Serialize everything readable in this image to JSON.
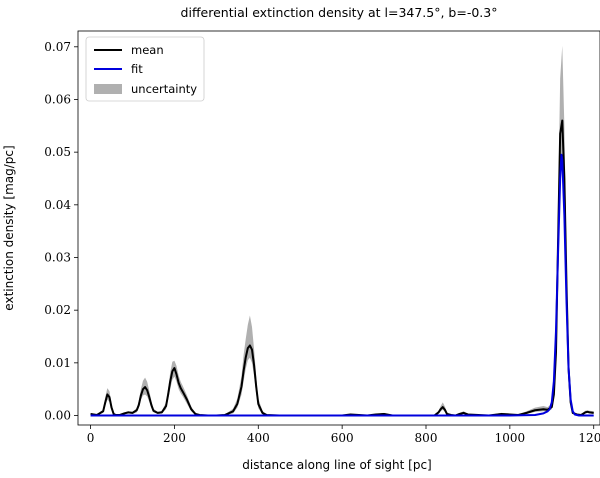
{
  "chart_data": {
    "type": "line",
    "title": "differential extinction density at l=347.5°, b=-0.3°",
    "xlabel": "distance along line of sight [pc]",
    "ylabel": "extinction density [mag/pc]",
    "xlim": [
      -30,
      1215
    ],
    "ylim": [
      -0.0018,
      0.073
    ],
    "xticks": [
      0,
      200,
      400,
      600,
      800,
      1000,
      1200
    ],
    "xtick_labels": [
      "0",
      "200",
      "400",
      "600",
      "800",
      "1000",
      "1200"
    ],
    "yticks": [
      0.0,
      0.01,
      0.02,
      0.03,
      0.04,
      0.05,
      0.06,
      0.07
    ],
    "ytick_labels": [
      "0.00",
      "0.01",
      "0.02",
      "0.03",
      "0.04",
      "0.05",
      "0.06",
      "0.07"
    ],
    "legend_position": "top-left",
    "grid": false,
    "series": [
      {
        "name": "mean",
        "color": "#000000",
        "x": [
          0,
          15,
          30,
          35,
          40,
          45,
          50,
          55,
          60,
          70,
          80,
          90,
          100,
          110,
          115,
          120,
          125,
          130,
          135,
          140,
          145,
          150,
          160,
          170,
          180,
          185,
          190,
          195,
          200,
          205,
          210,
          215,
          220,
          230,
          240,
          250,
          260,
          280,
          300,
          320,
          340,
          350,
          360,
          365,
          370,
          375,
          380,
          385,
          390,
          395,
          400,
          410,
          420,
          450,
          500,
          550,
          600,
          620,
          640,
          660,
          680,
          700,
          720,
          760,
          800,
          820,
          830,
          835,
          840,
          845,
          850,
          860,
          870,
          880,
          890,
          900,
          950,
          980,
          1000,
          1020,
          1040,
          1060,
          1080,
          1090,
          1100,
          1105,
          1110,
          1115,
          1120,
          1125,
          1130,
          1135,
          1140,
          1145,
          1150,
          1160,
          1170,
          1180,
          1185,
          1190,
          1200
        ],
        "y": [
          0.0003,
          0.0001,
          0.0008,
          0.0025,
          0.004,
          0.0035,
          0.0015,
          0.0003,
          0.0001,
          0.0001,
          0.0004,
          0.0006,
          0.0005,
          0.001,
          0.002,
          0.0038,
          0.005,
          0.0054,
          0.0048,
          0.0035,
          0.002,
          0.0009,
          0.0005,
          0.0006,
          0.0018,
          0.004,
          0.0065,
          0.0084,
          0.009,
          0.0078,
          0.0062,
          0.0052,
          0.0045,
          0.003,
          0.0012,
          0.0003,
          0.0001,
          0.0,
          0.0,
          0.0001,
          0.0008,
          0.0022,
          0.0055,
          0.0085,
          0.011,
          0.0128,
          0.0133,
          0.0125,
          0.0095,
          0.0055,
          0.0022,
          0.0005,
          0.0001,
          0.0,
          0.0,
          0.0,
          0.0,
          0.0002,
          0.0001,
          0.0,
          0.0002,
          0.0003,
          0.0,
          0.0,
          0.0,
          0.0,
          0.0006,
          0.0012,
          0.0016,
          0.0011,
          0.0003,
          0.0001,
          0.0,
          0.0003,
          0.0005,
          0.0002,
          0.0,
          0.0003,
          0.0002,
          0.0001,
          0.0005,
          0.001,
          0.0012,
          0.0011,
          0.0016,
          0.004,
          0.012,
          0.033,
          0.0535,
          0.056,
          0.045,
          0.025,
          0.009,
          0.0025,
          0.0005,
          0.0002,
          0.0001,
          0.0006,
          0.0007,
          0.0006,
          0.0005
        ]
      },
      {
        "name": "fit",
        "color": "#0000dd",
        "x": [
          0,
          200,
          400,
          600,
          800,
          1000,
          1060,
          1080,
          1090,
          1095,
          1100,
          1105,
          1110,
          1115,
          1120,
          1123,
          1125,
          1130,
          1135,
          1140,
          1145,
          1150,
          1155,
          1165,
          1180,
          1200
        ],
        "y": [
          0.0,
          0.0,
          0.0,
          0.0,
          0.0,
          0.0,
          0.0001,
          0.0004,
          0.0008,
          0.0012,
          0.0025,
          0.0065,
          0.016,
          0.031,
          0.045,
          0.0495,
          0.0485,
          0.038,
          0.022,
          0.009,
          0.003,
          0.0008,
          0.0002,
          0.0,
          0.0,
          0.0
        ]
      }
    ],
    "uncertainty_band": {
      "name": "uncertainty",
      "color": "#b0b0b0",
      "x": [
        0,
        15,
        30,
        35,
        40,
        45,
        50,
        55,
        60,
        70,
        80,
        90,
        100,
        110,
        115,
        120,
        125,
        130,
        135,
        140,
        145,
        150,
        160,
        170,
        180,
        185,
        190,
        195,
        200,
        205,
        210,
        215,
        220,
        230,
        240,
        250,
        260,
        280,
        300,
        320,
        340,
        350,
        360,
        365,
        370,
        375,
        380,
        385,
        390,
        395,
        400,
        410,
        420,
        450,
        500,
        550,
        600,
        620,
        640,
        660,
        680,
        700,
        720,
        760,
        800,
        820,
        830,
        835,
        840,
        845,
        850,
        860,
        870,
        880,
        890,
        900,
        950,
        980,
        1000,
        1020,
        1040,
        1060,
        1080,
        1090,
        1100,
        1105,
        1110,
        1115,
        1120,
        1125,
        1130,
        1135,
        1140,
        1145,
        1150,
        1160,
        1170,
        1180,
        1185,
        1190,
        1200
      ],
      "lower": [
        0.0001,
        0.0,
        0.0005,
        0.0018,
        0.003,
        0.0026,
        0.001,
        0.0001,
        0.0,
        0.0,
        0.0002,
        0.0004,
        0.0003,
        0.0006,
        0.0014,
        0.003,
        0.0038,
        0.004,
        0.0036,
        0.0026,
        0.0014,
        0.0006,
        0.0003,
        0.0004,
        0.0012,
        0.003,
        0.005,
        0.0068,
        0.0074,
        0.0064,
        0.005,
        0.0042,
        0.0036,
        0.0022,
        0.0008,
        0.0001,
        0.0,
        0.0,
        0.0,
        0.0,
        0.0004,
        0.0015,
        0.004,
        0.0065,
        0.0088,
        0.0105,
        0.011,
        0.01,
        0.0075,
        0.004,
        0.0014,
        0.0002,
        0.0,
        0.0,
        0.0,
        0.0,
        0.0,
        0.0001,
        0.0,
        0.0,
        0.0001,
        0.0001,
        0.0,
        0.0,
        0.0,
        0.0,
        0.0003,
        0.0008,
        0.0011,
        0.0007,
        0.0001,
        0.0,
        0.0,
        0.0001,
        0.0003,
        0.0001,
        0.0,
        0.0001,
        0.0001,
        0.0,
        0.0003,
        0.0007,
        0.0008,
        0.0008,
        0.0012,
        0.0032,
        0.0105,
        0.029,
        0.046,
        0.047,
        0.038,
        0.021,
        0.0075,
        0.0018,
        0.0003,
        0.0001,
        0.0,
        0.0004,
        0.0005,
        0.0004,
        0.0003
      ],
      "upper": [
        0.0005,
        0.0002,
        0.0012,
        0.0035,
        0.0052,
        0.0046,
        0.0022,
        0.0006,
        0.0002,
        0.0002,
        0.0006,
        0.0008,
        0.0007,
        0.0014,
        0.0028,
        0.005,
        0.0066,
        0.0072,
        0.0064,
        0.0047,
        0.0028,
        0.0013,
        0.0007,
        0.0009,
        0.0025,
        0.0052,
        0.0082,
        0.0102,
        0.0104,
        0.0094,
        0.0076,
        0.0064,
        0.0056,
        0.0038,
        0.0017,
        0.0005,
        0.0002,
        0.0001,
        0.0001,
        0.0002,
        0.0013,
        0.0032,
        0.0075,
        0.0115,
        0.0145,
        0.0172,
        0.019,
        0.0168,
        0.0125,
        0.0075,
        0.0032,
        0.0009,
        0.0002,
        0.0001,
        0.0001,
        0.0001,
        0.0001,
        0.0003,
        0.0002,
        0.0001,
        0.0003,
        0.0005,
        0.0001,
        0.0001,
        0.0001,
        0.0001,
        0.0009,
        0.0018,
        0.0025,
        0.0017,
        0.0006,
        0.0002,
        0.0001,
        0.0005,
        0.0008,
        0.0003,
        0.0001,
        0.0005,
        0.0003,
        0.0002,
        0.0008,
        0.0015,
        0.0018,
        0.0016,
        0.0022,
        0.005,
        0.0145,
        0.039,
        0.064,
        0.0702,
        0.055,
        0.031,
        0.0115,
        0.0034,
        0.0008,
        0.0003,
        0.0002,
        0.0009,
        0.001,
        0.0009,
        0.0008
      ]
    }
  }
}
